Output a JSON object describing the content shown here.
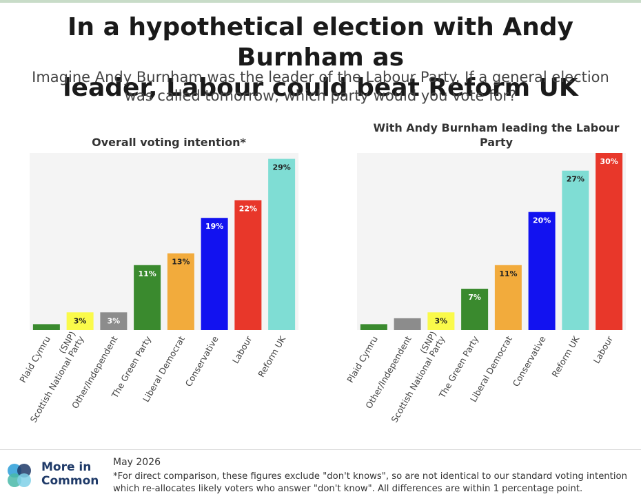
{
  "header": {
    "title_line1": "In a hypothetical election with Andy Burnham as",
    "title_line2": "leader, Labour could beat Reform UK",
    "subtitle_line1": "Imagine Andy Burnham was the leader of the Labour Party. If a general election",
    "subtitle_line2": "was called tomorrow, which party would you vote for?"
  },
  "chart_data": [
    {
      "type": "bar",
      "title": "Overall voting intention*",
      "xlabel": "",
      "ylabel": "",
      "ylim": [
        0,
        30
      ],
      "grid": false,
      "categories": [
        "Plaid Cymru",
        "Scottish National Party (SNP)",
        "Other/Independent",
        "The Green Party",
        "Liberal Democrat",
        "Conservative",
        "Labour",
        "Reform UK"
      ],
      "values": [
        1,
        3,
        3,
        11,
        13,
        19,
        22,
        29
      ],
      "data_labels": [
        "",
        "3%",
        "3%",
        "11%",
        "13%",
        "19%",
        "22%",
        "29%"
      ],
      "colors": [
        "#3a8a2e",
        "#fafa4a",
        "#8c8c8c",
        "#3a8a2e",
        "#f2ab3c",
        "#1212f0",
        "#e8372a",
        "#7fddd4"
      ]
    },
    {
      "type": "bar",
      "title": "With Andy Burnham leading the Labour Party",
      "xlabel": "",
      "ylabel": "",
      "ylim": [
        0,
        30
      ],
      "grid": false,
      "categories": [
        "Plaid Cymru",
        "Other/Independent",
        "Scottish National Party (SNP)",
        "The Green Party",
        "Liberal Democrat",
        "Conservative",
        "Reform UK",
        "Labour"
      ],
      "values": [
        1,
        2,
        3,
        7,
        11,
        20,
        27,
        30
      ],
      "data_labels": [
        "",
        "",
        "3%",
        "7%",
        "11%",
        "20%",
        "27%",
        "30%"
      ],
      "colors": [
        "#3a8a2e",
        "#8c8c8c",
        "#fafa4a",
        "#3a8a2e",
        "#f2ab3c",
        "#1212f0",
        "#7fddd4",
        "#e8372a"
      ]
    }
  ],
  "footer": {
    "brand_line1": "More in",
    "brand_line2": "Common",
    "date": "May 2026",
    "note": "*For direct comparison, these figures exclude \"don't knows\", so are not identical to our standard voting intention which re-allocates likely voters who answer \"don't know\". All differences are within 1 percentage point."
  },
  "colors": {
    "dark_label_bars": [
      "#fafa4a",
      "#f2ab3c",
      "#7fddd4"
    ],
    "plot_background": "#f4f4f4",
    "brand": "#1f3a68"
  }
}
